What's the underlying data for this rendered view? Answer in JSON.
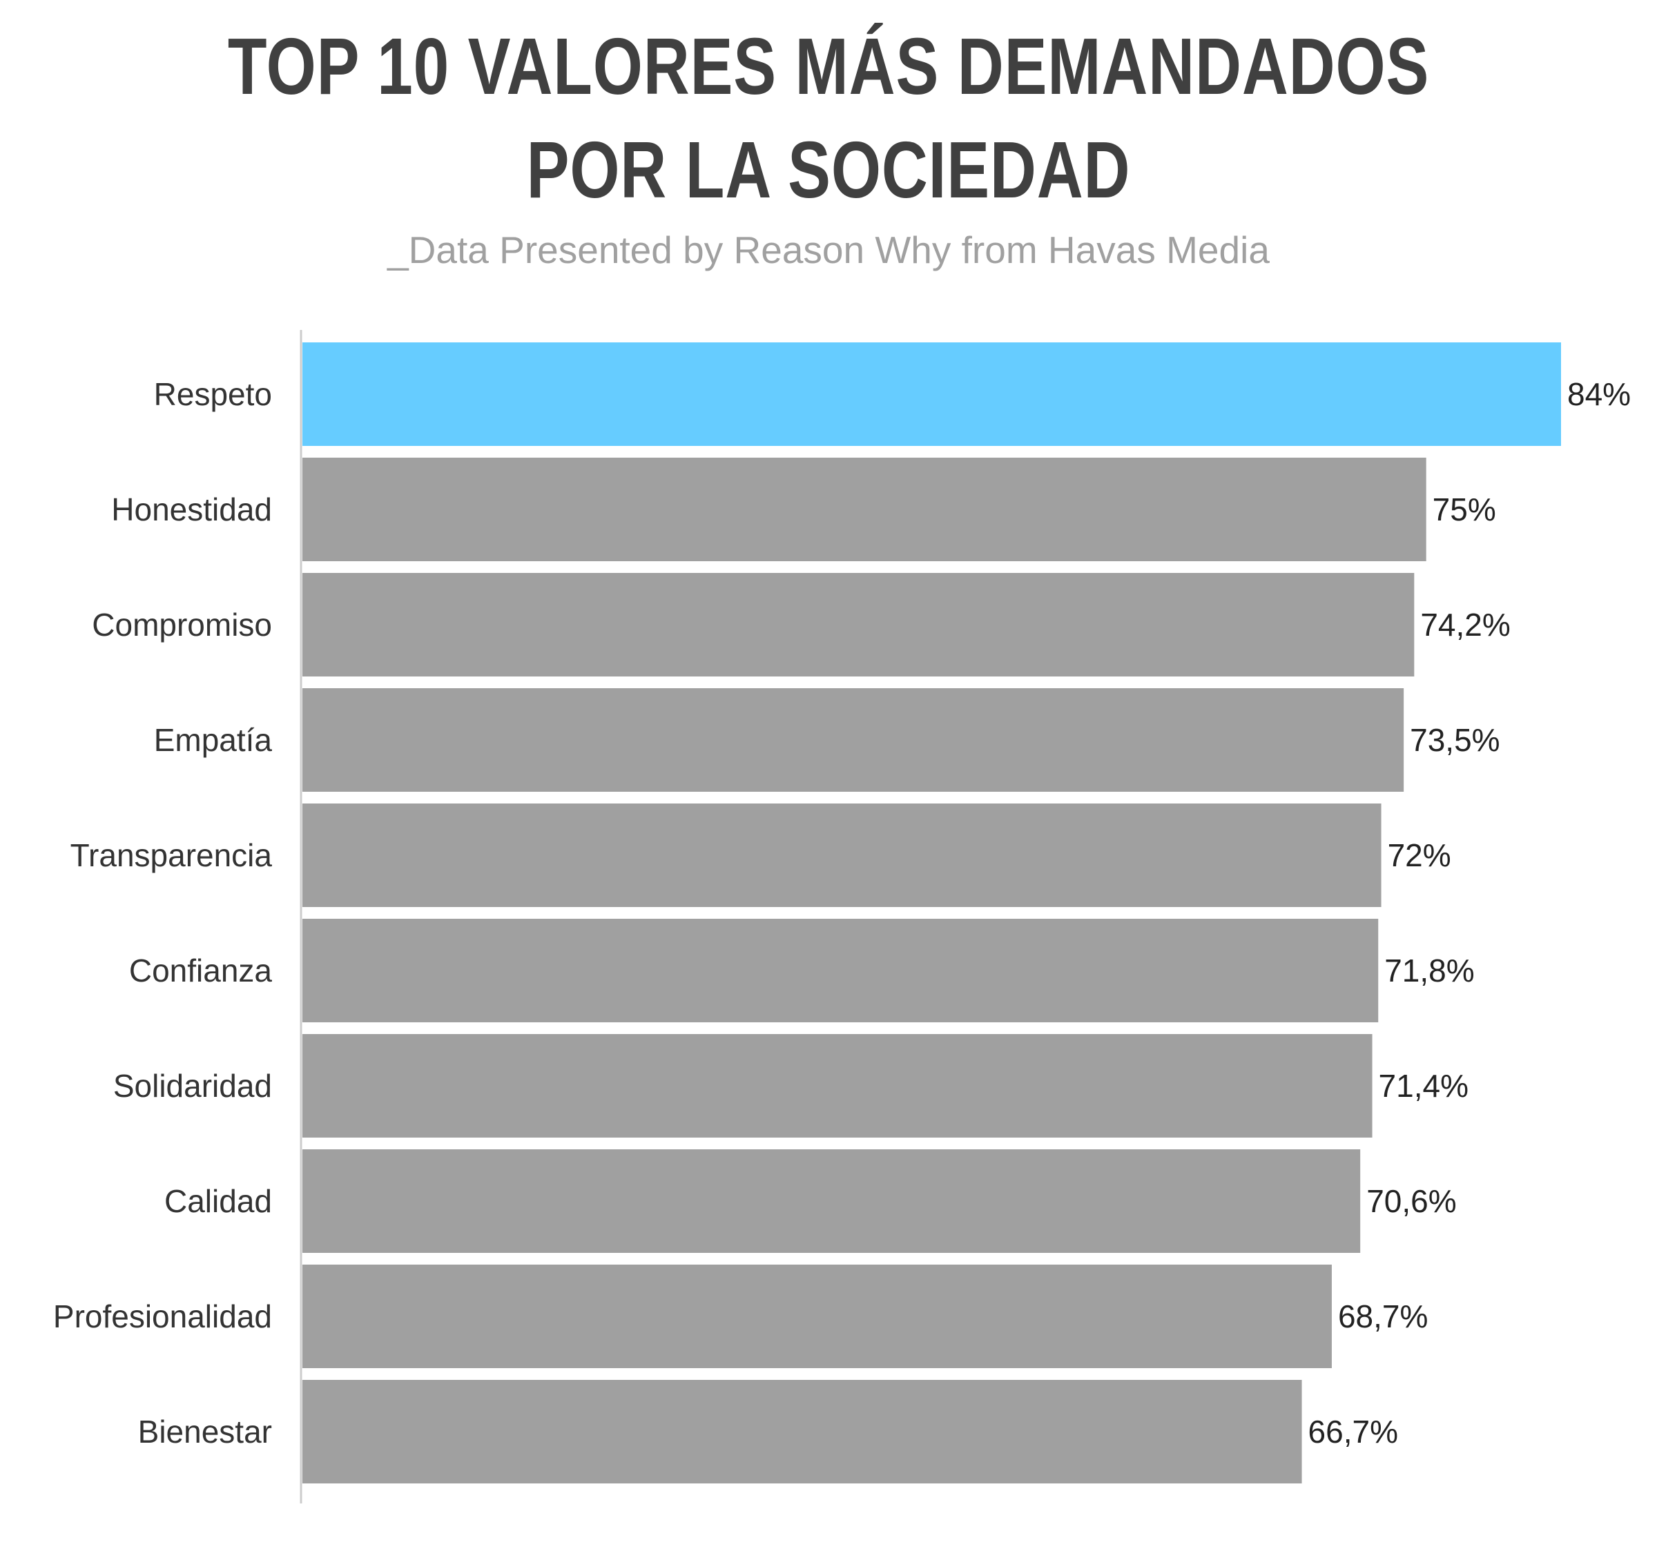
{
  "chart_data": {
    "type": "bar",
    "orientation": "horizontal",
    "title_lines": [
      "TOP 10 VALORES MÁS DEMANDADOS",
      "POR LA SOCIEDAD"
    ],
    "subtitle": "_Data Presented by Reason Why from Havas Media",
    "categories": [
      "Respeto",
      "Honestidad",
      "Compromiso",
      "Empatía",
      "Transparencia",
      "Confianza",
      "Solidaridad",
      "Calidad",
      "Profesionalidad",
      "Bienestar"
    ],
    "values": [
      84,
      75,
      74.2,
      73.5,
      72,
      71.8,
      71.4,
      70.6,
      68.7,
      66.7
    ],
    "value_labels": [
      "84%",
      "75%",
      "74,2%",
      "73,5%",
      "72%",
      "71,8%",
      "71,4%",
      "70,6%",
      "68,7%",
      "66,7%"
    ],
    "xlim": [
      0,
      84
    ],
    "grid": false,
    "legend": "none",
    "highlight_color": "#66CCFF",
    "bar_color": "#A0A0A0",
    "axis_color": "#CCCCCC",
    "category_label_color": "#333333",
    "value_label_color": "#222222"
  }
}
